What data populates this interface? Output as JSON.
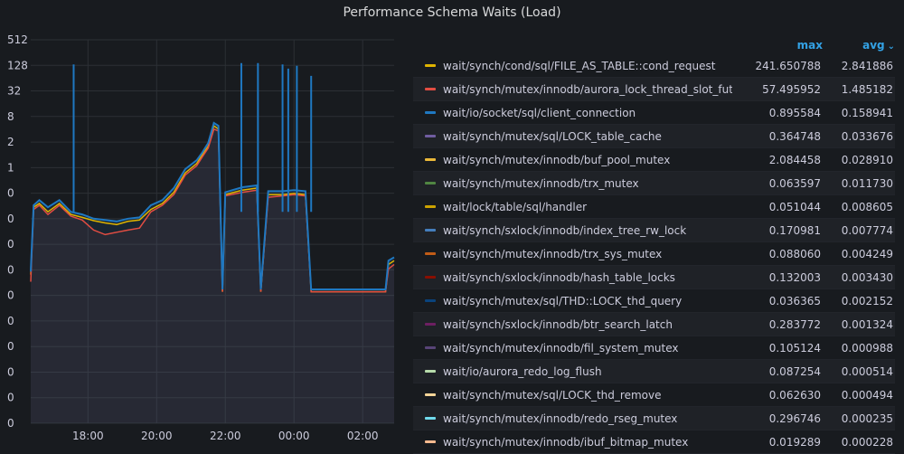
{
  "panel": {
    "title": "Performance Schema Waits (Load)"
  },
  "colors": {
    "background": "#181b1f",
    "grid": "#2c3035",
    "axis_text": "#ccccdc",
    "legend_header": "#33a2e5"
  },
  "legend": {
    "columns": {
      "max": "max",
      "avg": "avg"
    },
    "rows": [
      {
        "name": "wait/synch/cond/sql/FILE_AS_TABLE::cond_request",
        "max": "241.650788",
        "avg": "2.841886",
        "color": "#e0b400"
      },
      {
        "name": "wait/synch/mutex/innodb/aurora_lock_thread_slot_futex",
        "max": "57.495952",
        "avg": "1.485182",
        "color": "#e24d42"
      },
      {
        "name": "wait/io/socket/sql/client_connection",
        "max": "0.895584",
        "avg": "0.158941",
        "color": "#1f78c1"
      },
      {
        "name": "wait/synch/mutex/sql/LOCK_table_cache",
        "max": "0.364748",
        "avg": "0.033676",
        "color": "#705da0"
      },
      {
        "name": "wait/synch/mutex/innodb/buf_pool_mutex",
        "max": "2.084458",
        "avg": "0.028910",
        "color": "#eab839"
      },
      {
        "name": "wait/synch/mutex/innodb/trx_mutex",
        "max": "0.063597",
        "avg": "0.011730",
        "color": "#508642"
      },
      {
        "name": "wait/lock/table/sql/handler",
        "max": "0.051044",
        "avg": "0.008605",
        "color": "#cca300"
      },
      {
        "name": "wait/synch/sxlock/innodb/index_tree_rw_lock",
        "max": "0.170981",
        "avg": "0.007774",
        "color": "#447ebc"
      },
      {
        "name": "wait/synch/mutex/innodb/trx_sys_mutex",
        "max": "0.088060",
        "avg": "0.004249",
        "color": "#c15c17"
      },
      {
        "name": "wait/synch/sxlock/innodb/hash_table_locks",
        "max": "0.132003",
        "avg": "0.003430",
        "color": "#890f02"
      },
      {
        "name": "wait/synch/mutex/sql/THD::LOCK_thd_query",
        "max": "0.036365",
        "avg": "0.002152",
        "color": "#0a437c"
      },
      {
        "name": "wait/synch/sxlock/innodb/btr_search_latch",
        "max": "0.283772",
        "avg": "0.001324",
        "color": "#6d1f62"
      },
      {
        "name": "wait/synch/mutex/innodb/fil_system_mutex",
        "max": "0.105124",
        "avg": "0.000988",
        "color": "#584477"
      },
      {
        "name": "wait/io/aurora_redo_log_flush",
        "max": "0.087254",
        "avg": "0.000514",
        "color": "#b7dbab"
      },
      {
        "name": "wait/synch/mutex/sql/LOCK_thd_remove",
        "max": "0.062630",
        "avg": "0.000494",
        "color": "#f4d598"
      },
      {
        "name": "wait/synch/mutex/innodb/redo_rseg_mutex",
        "max": "0.296746",
        "avg": "0.000235",
        "color": "#70dbed"
      },
      {
        "name": "wait/synch/mutex/innodb/ibuf_bitmap_mutex",
        "max": "0.019289",
        "avg": "0.000228",
        "color": "#f9ba8f"
      }
    ]
  },
  "chart_data": {
    "type": "area",
    "stacked": true,
    "y_scale": "log2",
    "y_ticks": [
      "512",
      "128",
      "32",
      "8",
      "2",
      "1",
      "0",
      "0",
      "0",
      "0",
      "0",
      "0",
      "0",
      "0",
      "0",
      "0"
    ],
    "x_ticks": [
      "18:00",
      "20:00",
      "22:00",
      "00:00",
      "02:00"
    ],
    "x_range": [
      "16:20",
      "02:55"
    ],
    "grid": true,
    "legend_placement": "right",
    "series_approx": [
      {
        "name": "wait/synch/cond/sql/FILE_AS_TABLE::cond_request",
        "points": [
          [
            "16:20",
            0.04
          ],
          [
            "16:25",
            0.6
          ],
          [
            "16:35",
            0.7
          ],
          [
            "16:50",
            0.5
          ],
          [
            "17:10",
            0.7
          ],
          [
            "17:30",
            0.45
          ],
          [
            "17:50",
            0.4
          ],
          [
            "18:10",
            0.35
          ],
          [
            "18:30",
            0.32
          ],
          [
            "18:50",
            0.3
          ],
          [
            "19:10",
            0.34
          ],
          [
            "19:30",
            0.36
          ],
          [
            "19:50",
            0.55
          ],
          [
            "20:10",
            0.7
          ],
          [
            "20:30",
            1.1
          ],
          [
            "20:50",
            2.4
          ],
          [
            "21:10",
            3.5
          ],
          [
            "21:20",
            5
          ],
          [
            "21:30",
            7
          ],
          [
            "21:40",
            16
          ],
          [
            "21:48",
            14
          ],
          [
            "21:55",
            0.02
          ],
          [
            "22:00",
            1.0
          ],
          [
            "22:30",
            1.2
          ],
          [
            "22:55",
            1.3
          ],
          [
            "23:02",
            0.02
          ],
          [
            "23:15",
            1.0
          ],
          [
            "23:40",
            1.0
          ],
          [
            "24:00",
            1.05
          ],
          [
            "24:20",
            1.0
          ],
          [
            "24:30",
            0.02
          ],
          [
            "26:40",
            0.02
          ],
          [
            "26:45",
            0.06
          ],
          [
            "26:55",
            0.07
          ]
        ]
      },
      {
        "name": "wait/synch/mutex/innodb/aurora_lock_thread_slot_futex",
        "points": [
          [
            "16:20",
            0.03
          ],
          [
            "16:25",
            0.55
          ],
          [
            "16:35",
            0.65
          ],
          [
            "16:50",
            0.45
          ],
          [
            "17:10",
            0.65
          ],
          [
            "17:30",
            0.42
          ],
          [
            "17:50",
            0.36
          ],
          [
            "18:10",
            0.24
          ],
          [
            "18:30",
            0.2
          ],
          [
            "18:50",
            0.22
          ],
          [
            "19:10",
            0.24
          ],
          [
            "19:30",
            0.26
          ],
          [
            "19:50",
            0.5
          ],
          [
            "20:10",
            0.65
          ],
          [
            "20:30",
            1.0
          ],
          [
            "20:50",
            2.2
          ],
          [
            "21:10",
            3.2
          ],
          [
            "21:20",
            4.6
          ],
          [
            "21:30",
            6.5
          ],
          [
            "21:40",
            14
          ],
          [
            "21:48",
            13
          ],
          [
            "21:55",
            0.02
          ],
          [
            "22:00",
            0.95
          ],
          [
            "22:30",
            1.1
          ],
          [
            "22:55",
            1.2
          ],
          [
            "23:02",
            0.02
          ],
          [
            "23:15",
            0.9
          ],
          [
            "23:40",
            0.95
          ],
          [
            "24:00",
            1.0
          ],
          [
            "24:20",
            0.95
          ],
          [
            "24:30",
            0.02
          ],
          [
            "26:40",
            0.02
          ],
          [
            "26:45",
            0.05
          ],
          [
            "26:55",
            0.06
          ]
        ]
      },
      {
        "name": "wait/io/socket/sql/client_connection",
        "points": [
          [
            "16:20",
            0.045
          ],
          [
            "16:25",
            0.65
          ],
          [
            "16:35",
            0.8
          ],
          [
            "16:50",
            0.6
          ],
          [
            "17:10",
            0.8
          ],
          [
            "17:30",
            0.5
          ],
          [
            "17:50",
            0.45
          ],
          [
            "18:10",
            0.38
          ],
          [
            "18:30",
            0.36
          ],
          [
            "18:50",
            0.34
          ],
          [
            "19:10",
            0.38
          ],
          [
            "19:30",
            0.4
          ],
          [
            "19:50",
            0.65
          ],
          [
            "20:10",
            0.8
          ],
          [
            "20:30",
            1.3
          ],
          [
            "20:50",
            2.8
          ],
          [
            "21:10",
            4
          ],
          [
            "21:20",
            5.5
          ],
          [
            "21:30",
            8
          ],
          [
            "21:40",
            18
          ],
          [
            "21:48",
            16
          ],
          [
            "21:55",
            0.022
          ],
          [
            "22:00",
            1.1
          ],
          [
            "22:30",
            1.35
          ],
          [
            "22:55",
            1.45
          ],
          [
            "23:02",
            0.022
          ],
          [
            "23:15",
            1.15
          ],
          [
            "23:40",
            1.15
          ],
          [
            "24:00",
            1.2
          ],
          [
            "24:20",
            1.15
          ],
          [
            "24:30",
            0.022
          ],
          [
            "26:40",
            0.022
          ],
          [
            "26:45",
            0.07
          ],
          [
            "26:55",
            0.08
          ]
        ]
      }
    ],
    "spikes_approx": [
      [
        "17:35",
        190
      ],
      [
        "22:28",
        200
      ],
      [
        "22:57",
        200
      ],
      [
        "23:40",
        190
      ],
      [
        "23:50",
        160
      ],
      [
        "24:05",
        180
      ],
      [
        "24:30",
        120
      ]
    ]
  }
}
